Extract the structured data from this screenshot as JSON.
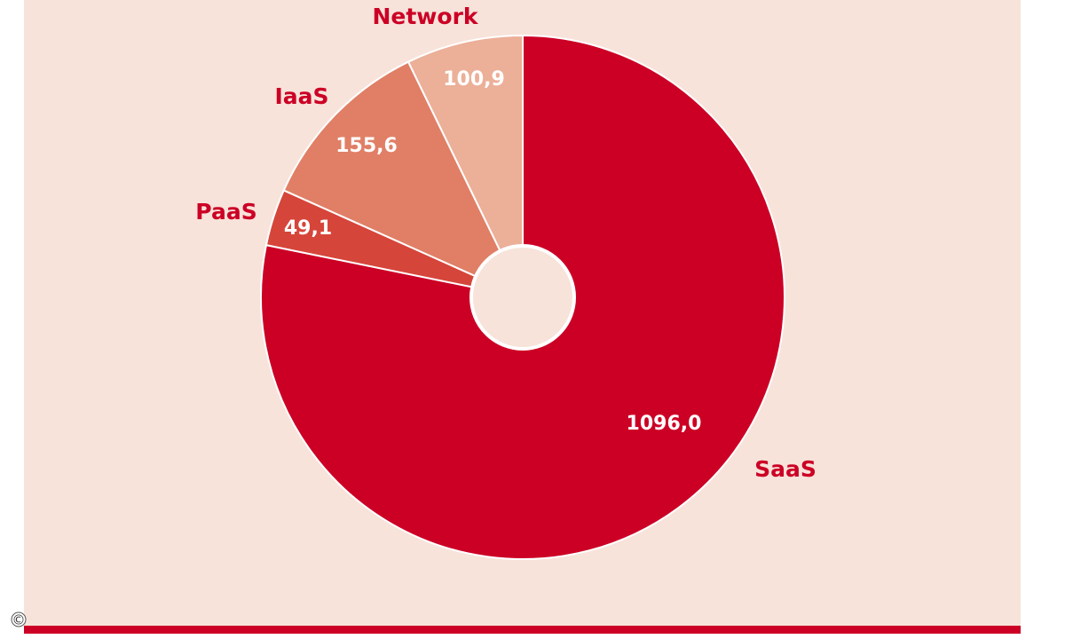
{
  "chart_data": {
    "type": "donut",
    "categories": [
      "SaaS",
      "PaaS",
      "IaaS",
      "Network"
    ],
    "values": [
      1096.0,
      49.1,
      155.6,
      100.9
    ],
    "value_labels": [
      "1096,0",
      "49,1",
      "155,6",
      "100,9"
    ],
    "colors": [
      "#cc0025",
      "#d6453a",
      "#e07f66",
      "#ecaf98"
    ],
    "copyright": "©"
  }
}
